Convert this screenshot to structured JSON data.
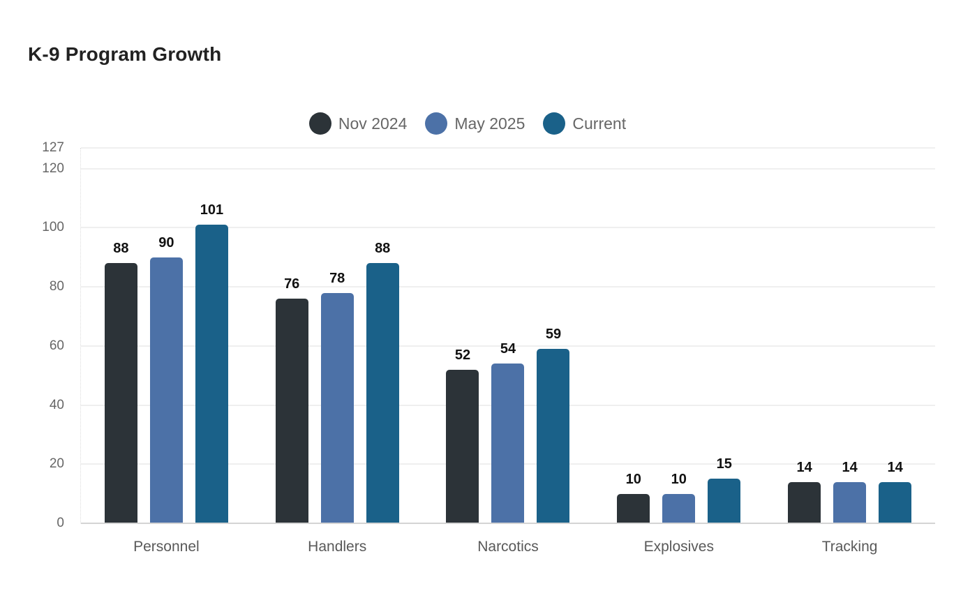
{
  "title": "K-9 Program Growth",
  "chart_data": {
    "type": "bar",
    "title": "K-9 Program Growth",
    "categories": [
      "Personnel",
      "Handlers",
      "Narcotics",
      "Explosives",
      "Tracking"
    ],
    "series": [
      {
        "name": "Nov 2024",
        "color": "#2c3338",
        "values": [
          88,
          76,
          52,
          10,
          14
        ]
      },
      {
        "name": "May 2025",
        "color": "#4c71a7",
        "values": [
          90,
          78,
          54,
          10,
          14
        ]
      },
      {
        "name": "Current",
        "color": "#1a6189",
        "values": [
          101,
          88,
          59,
          15,
          14
        ]
      }
    ],
    "yticks": [
      0,
      20,
      40,
      60,
      80,
      100,
      120,
      127
    ],
    "ylim": [
      0,
      127
    ],
    "xlabel": "",
    "ylabel": "",
    "grid": true,
    "legend_position": "top-center",
    "value_labels": true
  }
}
